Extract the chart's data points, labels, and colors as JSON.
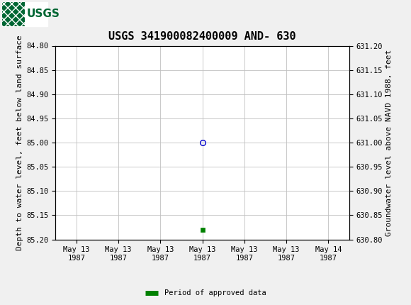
{
  "title": "USGS 341900082400009 AND- 630",
  "left_ylabel": "Depth to water level, feet below land surface",
  "right_ylabel": "Groundwater level above NAVD 1988, feet",
  "ylim_left_top": 84.8,
  "ylim_left_bottom": 85.2,
  "ylim_right_top": 631.2,
  "ylim_right_bottom": 630.8,
  "left_yticks": [
    84.8,
    84.85,
    84.9,
    84.95,
    85.0,
    85.05,
    85.1,
    85.15,
    85.2
  ],
  "right_yticks": [
    631.2,
    631.15,
    631.1,
    631.05,
    631.0,
    630.95,
    630.9,
    630.85,
    630.8
  ],
  "circle_point_x": 3.0,
  "circle_point_y": 85.0,
  "square_point_x": 3.0,
  "square_point_y": 85.18,
  "circle_color": "#0000cc",
  "square_color": "#008000",
  "background_color": "#f0f0f0",
  "plot_bg_color": "#ffffff",
  "grid_color": "#c0c0c0",
  "header_bg_color": "#006633",
  "header_text_color": "#ffffff",
  "title_fontsize": 11,
  "axis_label_fontsize": 8,
  "tick_fontsize": 7.5,
  "legend_label": "Period of approved data",
  "legend_color": "#008000",
  "x_min": -0.5,
  "x_max": 6.5,
  "xtick_positions": [
    0,
    1,
    2,
    3,
    4,
    5,
    6
  ],
  "xtick_labels": [
    "May 13\n1987",
    "May 13\n1987",
    "May 13\n1987",
    "May 13\n1987",
    "May 13\n1987",
    "May 13\n1987",
    "May 14\n1987"
  ]
}
